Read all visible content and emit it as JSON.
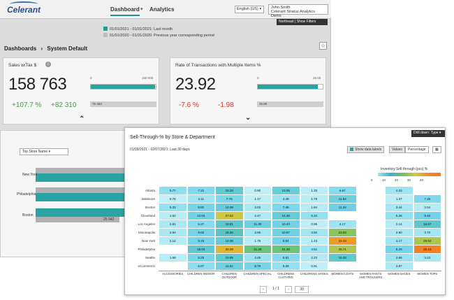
{
  "header": {
    "logo": "Celerant",
    "tabs": [
      {
        "label": "Dashboard"
      },
      {
        "label": "Analytics"
      }
    ],
    "language": "English (US)",
    "user_name": "John Smith",
    "user_company": "Celerant Stratus Analytics Demo",
    "filter_button": "Northeast | Show Filters"
  },
  "legend": {
    "current": "01/01/2021 - 01/31/2021:  Last month",
    "previous": "01/01/2020 - 01/31/2020:  Previous year corresponding period",
    "current_color": "#1f9e9e",
    "previous_color": "#bdbdbd"
  },
  "breadcrumb": {
    "root": "Dashboards",
    "sep": "›",
    "page": "System Default"
  },
  "kpi1": {
    "title": "Sales w/Tax $",
    "value": "158 763",
    "delta_pct": "+107.7 %",
    "delta_abs": "+82 310",
    "axis_min": "0",
    "axis_max": "160 000",
    "prev_value": "76 453",
    "bar_fraction": 0.99
  },
  "kpi2": {
    "title": "Rate of Transactions with Multiple Items %",
    "value": "23.92",
    "delta_pct": "-7.6 %",
    "delta_abs": "-1.98",
    "axis_min": "0",
    "axis_max": "26.00",
    "prev_value": "25.90",
    "bar_fraction": 0.92
  },
  "panel2": {
    "select": "Top Store Name",
    "cities": [
      "New York",
      "Philadelphia",
      "Boston"
    ],
    "last_value": "25 042"
  },
  "card": {
    "title": "Sell-Through-% by Store & Department",
    "drill": "Drill down: Type",
    "date_range": "01/09/2021 - 02/07/2021:  Last 30 days",
    "show_labels": "Show data labels",
    "values_btn": "Values",
    "percentage_btn": "Percentage",
    "scale_title": "Inventory Sell-through (pcs) %",
    "scale_ticks": [
      "0",
      "10",
      "20",
      "30",
      "40"
    ],
    "pager": {
      "prev": "‹",
      "page": "1 / 1",
      "next": "›",
      "size": "30"
    }
  },
  "chart_data": {
    "type": "heatmap",
    "title": "Sell-Through-% by Store & Department",
    "rows": [
      "Atlanta",
      "Baltimore",
      "Boston",
      "Cleveland",
      "Los Angeles",
      "Minneapolis",
      "New York",
      "Philadelphia",
      "Seattle",
      "eCommerce"
    ],
    "columns": [
      "ACCESSORIES",
      "CHILDREN INDOOR",
      "CHILDREN OUTDOOR",
      "CHILDREN SPECIAL",
      "CHILDRENS CLOTHING",
      "CHILDRENS SHOES",
      "WOMEN COATS",
      "WOMEN PANTS AND TROUSERS",
      "WOMEN SHOES",
      "WOMEN TOPS"
    ],
    "values": [
      [
        "5.77",
        "7.22",
        "15.33",
        "0.90",
        "13.05",
        "1.33",
        "6.67",
        "",
        "4.23",
        ""
      ],
      [
        "0.78",
        "4.11",
        "7.76",
        "1.17",
        "4.48",
        "1.79",
        "11.84",
        "",
        "1.37",
        "7.35"
      ],
      [
        "5.33",
        "8.82",
        "14.08",
        "3.02",
        "7.46",
        "1.84",
        "11.24",
        "",
        "3.44",
        "2.04"
      ],
      [
        "1.62",
        "10.03",
        "27.52",
        "2.47",
        "14.38",
        "5.34",
        "",
        "",
        "5.26",
        "9.40"
      ],
      [
        "2.91",
        "6.27",
        "16.81",
        "11.30",
        "10.43",
        "0.95",
        "4.17",
        "",
        "2.14",
        "16.67"
      ],
      [
        "2.94",
        "9.02",
        "18.36",
        "3.95",
        "10.87",
        "3.92",
        "23.53",
        "",
        "2.90",
        "3.70"
      ],
      [
        "2.14",
        "9.19",
        "14.06",
        "1.79",
        "8.84",
        "1.43",
        "33.33",
        "",
        "4.17",
        "25.54"
      ],
      [
        "",
        "16.04",
        "30.39",
        "21.28",
        "21.38",
        "4.51",
        "25.71",
        "",
        "8.29",
        "38.10"
      ],
      [
        "1.68",
        "8.28",
        "15.95",
        "4.46",
        "6.91",
        "2.23",
        "16.00",
        "",
        "4.66",
        "3.23"
      ],
      [
        "",
        "6.07",
        "11.62",
        "8.79",
        "5.28",
        "0.91",
        "",
        "",
        "2.87",
        ""
      ]
    ],
    "value_unit": "%",
    "color_scale_range": [
      0,
      40
    ]
  }
}
